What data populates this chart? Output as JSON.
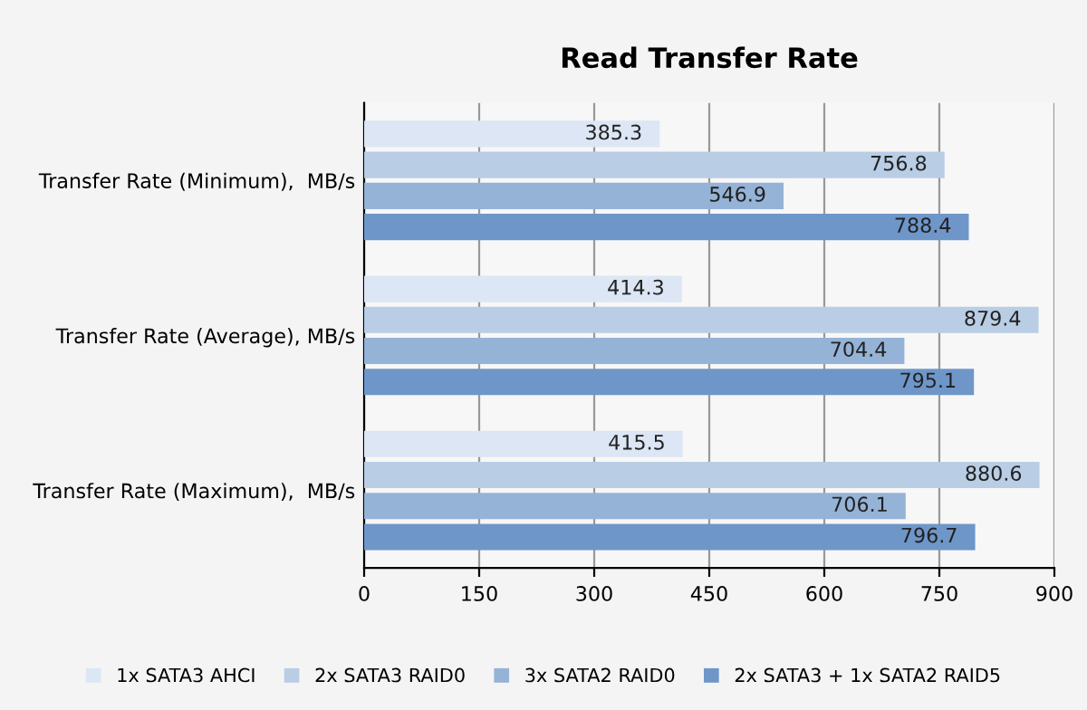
{
  "chart_data": {
    "type": "bar",
    "orientation": "horizontal",
    "title": "Read Transfer Rate",
    "categories": [
      "Transfer Rate (Minimum),  MB/s",
      "Transfer Rate (Average), MB/s",
      "Transfer Rate (Maximum),  MB/s"
    ],
    "series": [
      {
        "name": "1x SATA3 AHCI",
        "color": "#dce6f4",
        "values": [
          385.3,
          414.3,
          415.5
        ]
      },
      {
        "name": "2x SATA3 RAID0",
        "color": "#b9cde5",
        "values": [
          756.8,
          879.4,
          880.6
        ]
      },
      {
        "name": "3x SATA2 RAID0",
        "color": "#95b3d7",
        "values": [
          546.9,
          704.4,
          706.1
        ]
      },
      {
        "name": "2x SATA3 + 1x SATA2 RAID5",
        "color": "#6f96c9",
        "values": [
          788.4,
          795.1,
          796.7
        ]
      }
    ],
    "xlim": [
      0,
      900
    ],
    "xticks": [
      0,
      150,
      300,
      450,
      600,
      750,
      900
    ],
    "grid": "x",
    "legend": "bottom",
    "data_labels": true
  }
}
